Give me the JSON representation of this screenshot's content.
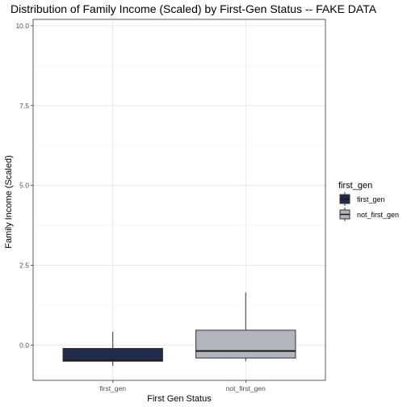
{
  "chart_data": {
    "type": "boxplot",
    "title": "Distribution of Family Income (Scaled) by First-Gen Status -- FAKE DATA",
    "xlabel": "First Gen Status",
    "ylabel": "Family Income (Scaled)",
    "categories": [
      "first_gen",
      "not_first_gen"
    ],
    "ylim": [
      -1.1,
      10.2
    ],
    "yticks": [
      0.0,
      2.5,
      5.0,
      7.5,
      10.0
    ],
    "ytick_labels": [
      "0.0",
      "2.5",
      "5.0",
      "7.5",
      "10.0"
    ],
    "grid": true,
    "legend": {
      "title": "first_gen",
      "position": "right",
      "entries": [
        "first_gen",
        "not_first_gen"
      ]
    },
    "series": [
      {
        "name": "first_gen",
        "color": "#222b4a",
        "q1": -0.5,
        "median": -0.48,
        "q3": -0.1,
        "whisker_low": -0.65,
        "whisker_high": 0.42
      },
      {
        "name": "not_first_gen",
        "color": "#b3b5bd",
        "q1": -0.4,
        "median": -0.18,
        "q3": 0.47,
        "whisker_low": -0.5,
        "whisker_high": 1.65
      }
    ]
  }
}
